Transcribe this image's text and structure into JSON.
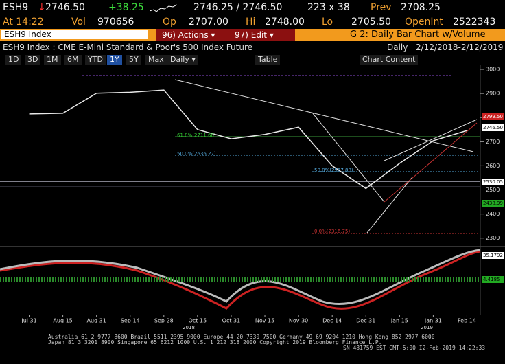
{
  "header": {
    "ticker": "ESH9",
    "arrow": "↓",
    "last": "2746.50",
    "change": "+38.25",
    "bid_ask": "2746.25 / 2746.50",
    "size": "223 x 38",
    "prev_label": "Prev",
    "prev": "2708.25",
    "time": "At 14:22",
    "vol_label": "Vol",
    "vol": "970656",
    "op_label": "Op",
    "op": "2707.00",
    "hi_label": "Hi",
    "hi": "2748.00",
    "lo_label": "Lo",
    "lo": "2705.50",
    "oi_label": "OpenInt",
    "oi": "2522343"
  },
  "command_bar": {
    "security": "ESH9 Index",
    "actions": "96) Actions ▾",
    "edit": "97) Edit ▾",
    "title": "G 2: Daily Bar Chart w/Volume"
  },
  "subtitle": {
    "description": "ESH9 Index : CME E-Mini Standard & Poor's 500 Index Future",
    "period": "Daily",
    "range": "2/12/2018-2/12/2019"
  },
  "toolbar": {
    "ranges": [
      "1D",
      "3D",
      "1M",
      "6M",
      "YTD",
      "1Y",
      "5Y",
      "Max"
    ],
    "frequency": "Daily ▾",
    "table": "Table",
    "content": "Chart Content"
  },
  "chart_data": {
    "type": "line",
    "categories": [
      "Jul 31",
      "Aug 15",
      "Aug 31",
      "Sep 14",
      "Sep 28",
      "Oct 15",
      "Oct 31",
      "Nov 15",
      "Nov 30",
      "Dec 14",
      "Dec 31",
      "Jan 15",
      "Jan 31",
      "Feb 14"
    ],
    "values": [
      2815,
      2818,
      2901,
      2905,
      2914,
      2750,
      2712,
      2730,
      2760,
      2600,
      2506,
      2610,
      2704,
      2746
    ],
    "color": "#e8e8e8",
    "ylim": [
      2285,
      3017
    ],
    "yticks": [
      2300,
      2400,
      2500,
      2600,
      2700,
      2800,
      2900,
      3000
    ],
    "year_labels": [
      "2018",
      "2019"
    ],
    "annotations": [
      "61.8%(2711.68)",
      "50.0%(2636.27)",
      "50.0%(2567.88)",
      "0.0%(2316.75)"
    ],
    "price_tags": [
      "2799.50",
      "2746.50",
      "2530.05",
      "2438.99"
    ],
    "oscillator_tags": [
      "35.1792",
      "4.4185"
    ]
  },
  "footer": [
    "Australia 61 2 9777 8600  Brazil 5511 2395 9000  Europe 44 20 7330 7500  Germany 49 69 9204 1210  Hong Kong 852 2977 6000",
    "Japan 81 3 3201 8900       Singapore 65 6212 1000       U.S. 1 212 318 2000       Copyright 2019 Bloomberg Finance L.P.",
    "SN 481759 EST  GMT-5:00 I2-Feb-2019 14:22:33"
  ]
}
